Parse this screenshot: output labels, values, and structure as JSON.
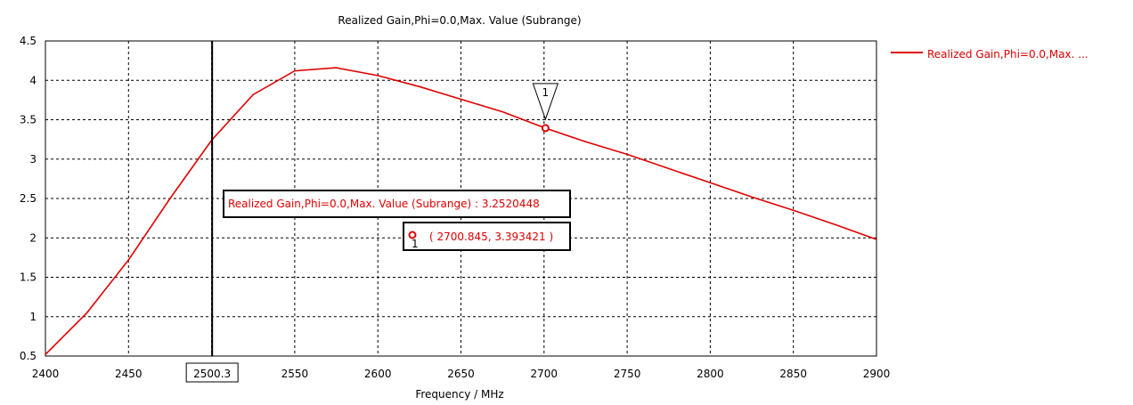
{
  "chart_data": {
    "type": "line",
    "title": "Realized Gain,Phi=0.0,Max. Value (Subrange)",
    "xlabel": "Frequency / MHz",
    "ylabel": "",
    "xlim": [
      2400,
      2900
    ],
    "ylim": [
      0.5,
      4.5
    ],
    "x_ticks": [
      "2400",
      "2450",
      "2500",
      "2550",
      "2600",
      "2650",
      "2700",
      "2750",
      "2800",
      "2850",
      "2900"
    ],
    "y_ticks": [
      "0.5",
      "1",
      "1.5",
      "2",
      "2.5",
      "3",
      "3.5",
      "4",
      "4.5"
    ],
    "grid": true,
    "legend_position": "right",
    "series": [
      {
        "name": "Realized Gain,Phi=0.0,Max. ...",
        "color": "#e00000",
        "x": [
          2400,
          2425,
          2450,
          2475,
          2500,
          2525,
          2550,
          2575,
          2600,
          2625,
          2650,
          2675,
          2700,
          2725,
          2750,
          2775,
          2800,
          2825,
          2850,
          2875,
          2900
        ],
        "y": [
          0.52,
          1.05,
          1.72,
          2.5,
          3.24,
          3.82,
          4.12,
          4.16,
          4.06,
          3.92,
          3.76,
          3.6,
          3.4,
          3.22,
          3.06,
          2.88,
          2.7,
          2.52,
          2.35,
          2.17,
          1.98
        ]
      }
    ],
    "cursor": {
      "x": 2500.3,
      "x_label": "2500.3",
      "readout": "Realized Gain,Phi=0.0,Max. Value (Subrange) : 3.2520448"
    },
    "marker": {
      "id": "1",
      "x": 2700.845,
      "y": 3.393421,
      "readout": "( 2700.845, 3.393421 )"
    }
  }
}
